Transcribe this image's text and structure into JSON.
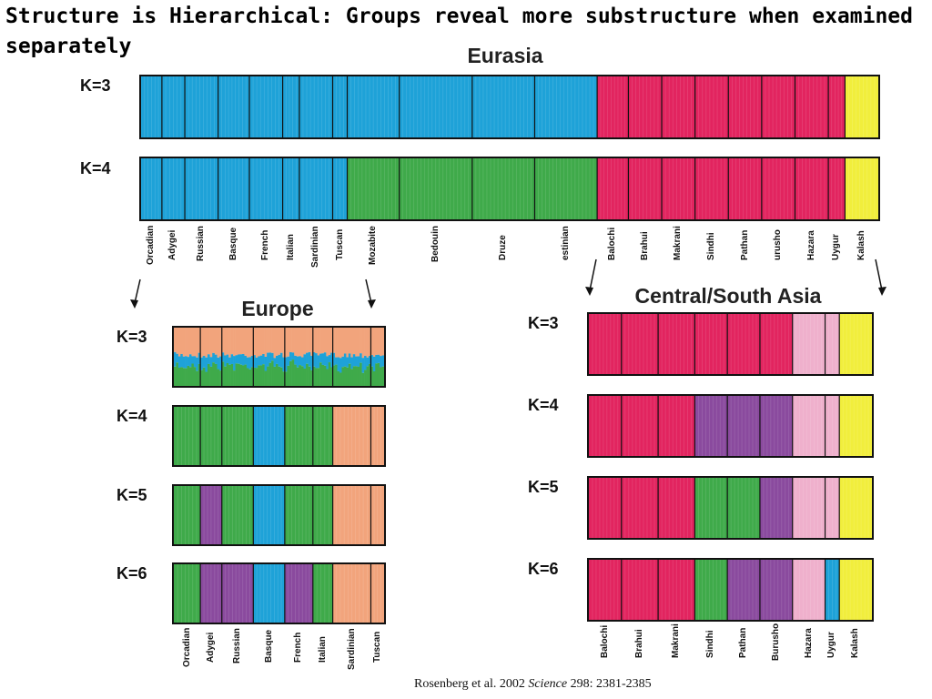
{
  "slide": {
    "title": "Structure is Hierarchical: Groups reveal more substructure when examined separately",
    "citation": {
      "authors": "Rosenberg et al. 2002",
      "journal": "Science",
      "volume_pages": "298: 2381-2385"
    }
  },
  "colors": {
    "blue": "#1ea2d8",
    "red": "#e2245f",
    "yellow": "#f1ee3c",
    "green": "#3faa4a",
    "orange": "#f2a47c",
    "purple": "#8a4a9e",
    "pink": "#efb0cc"
  },
  "chart_data": [
    {
      "type": "structure-barplot",
      "title": "Eurasia",
      "populations": [
        "Orcadian",
        "Adygei",
        "Russian",
        "Basque",
        "French",
        "Italian",
        "Sardinian",
        "Tuscan",
        "Mozabite",
        "Bedouin",
        "Druze",
        "Palestinian",
        "Balochi",
        "Brahui",
        "Makrani",
        "Sindhi",
        "Pathan",
        "Burusho",
        "Hazara",
        "Uygur",
        "Kalash"
      ],
      "population_label_display": [
        "Orcadian",
        "Adygei",
        "Russian",
        "Basque",
        "French",
        "Italian",
        "Sardinian",
        "Tuscan",
        "Mozabite",
        "Bedouin",
        "Druze",
        "estinian",
        "Balochi",
        "Brahui",
        "Makrani",
        "Sindhi",
        "Pathan",
        "urusho",
        "Hazara",
        "Uygur",
        "Kalash"
      ],
      "group_weights": [
        1,
        1.1,
        1.6,
        1.5,
        1.6,
        0.8,
        1.6,
        0.7,
        2.5,
        3.5,
        3,
        3,
        1.5,
        1.6,
        1.6,
        1.6,
        1.6,
        1.6,
        1.6,
        0.8,
        1.6
      ],
      "rows": [
        {
          "k_label": "K=3",
          "group_colors": [
            "blue",
            "blue",
            "blue",
            "blue",
            "blue",
            "blue",
            "blue",
            "blue",
            "blue",
            "blue",
            "blue",
            "blue",
            "red",
            "red",
            "red",
            "red",
            "red",
            "red",
            "red",
            "red",
            "yellow"
          ]
        },
        {
          "k_label": "K=4",
          "group_colors": [
            "blue",
            "blue",
            "blue",
            "blue",
            "blue",
            "blue",
            "blue",
            "blue",
            "green",
            "green",
            "green",
            "green",
            "red",
            "red",
            "red",
            "red",
            "red",
            "red",
            "red",
            "red",
            "yellow"
          ]
        }
      ]
    },
    {
      "type": "structure-barplot",
      "title": "Europe",
      "populations": [
        "Orcadian",
        "Adygei",
        "Russian",
        "Basque",
        "French",
        "Italian",
        "Sardinian",
        "Tuscan"
      ],
      "group_weights": [
        1.6,
        1.3,
        1.9,
        1.9,
        1.7,
        1.2,
        2.3,
        0.8
      ],
      "rows": [
        {
          "k_label": "K=3",
          "group_colors": [
            "mix-orange-blue-green",
            "mix-orange-blue-green",
            "mix-orange-blue-green",
            "mix-orange-blue-green",
            "mix-orange-blue-green",
            "mix-orange-blue-green",
            "mix-orange-blue-green",
            "mix-orange-blue-green"
          ]
        },
        {
          "k_label": "K=4",
          "group_colors": [
            "green",
            "green",
            "green",
            "blue",
            "green",
            "green",
            "orange",
            "orange"
          ]
        },
        {
          "k_label": "K=5",
          "group_colors": [
            "green",
            "purple",
            "green",
            "blue",
            "green",
            "green",
            "orange",
            "orange"
          ]
        },
        {
          "k_label": "K=6",
          "group_colors": [
            "green",
            "purple",
            "purple",
            "blue",
            "purple",
            "green",
            "orange",
            "orange"
          ]
        }
      ]
    },
    {
      "type": "structure-barplot",
      "title": "Central/South Asia",
      "populations": [
        "Balochi",
        "Brahui",
        "Makrani",
        "Sindhi",
        "Pathan",
        "Burusho",
        "Hazara",
        "Uygur",
        "Kalash"
      ],
      "group_weights": [
        1.6,
        1.8,
        1.8,
        1.6,
        1.6,
        1.6,
        1.6,
        0.7,
        1.6
      ],
      "rows": [
        {
          "k_label": "K=3",
          "group_colors": [
            "red",
            "red",
            "red",
            "red",
            "red",
            "red",
            "pink",
            "pink",
            "yellow"
          ]
        },
        {
          "k_label": "K=4",
          "group_colors": [
            "red",
            "red",
            "red",
            "purple",
            "purple",
            "purple",
            "pink",
            "pink",
            "yellow"
          ]
        },
        {
          "k_label": "K=5",
          "group_colors": [
            "red",
            "red",
            "red",
            "green",
            "green",
            "purple",
            "pink",
            "pink",
            "yellow"
          ]
        },
        {
          "k_label": "K=6",
          "group_colors": [
            "red",
            "red",
            "red",
            "green",
            "purple",
            "purple",
            "pink",
            "blue",
            "yellow"
          ]
        }
      ]
    }
  ]
}
